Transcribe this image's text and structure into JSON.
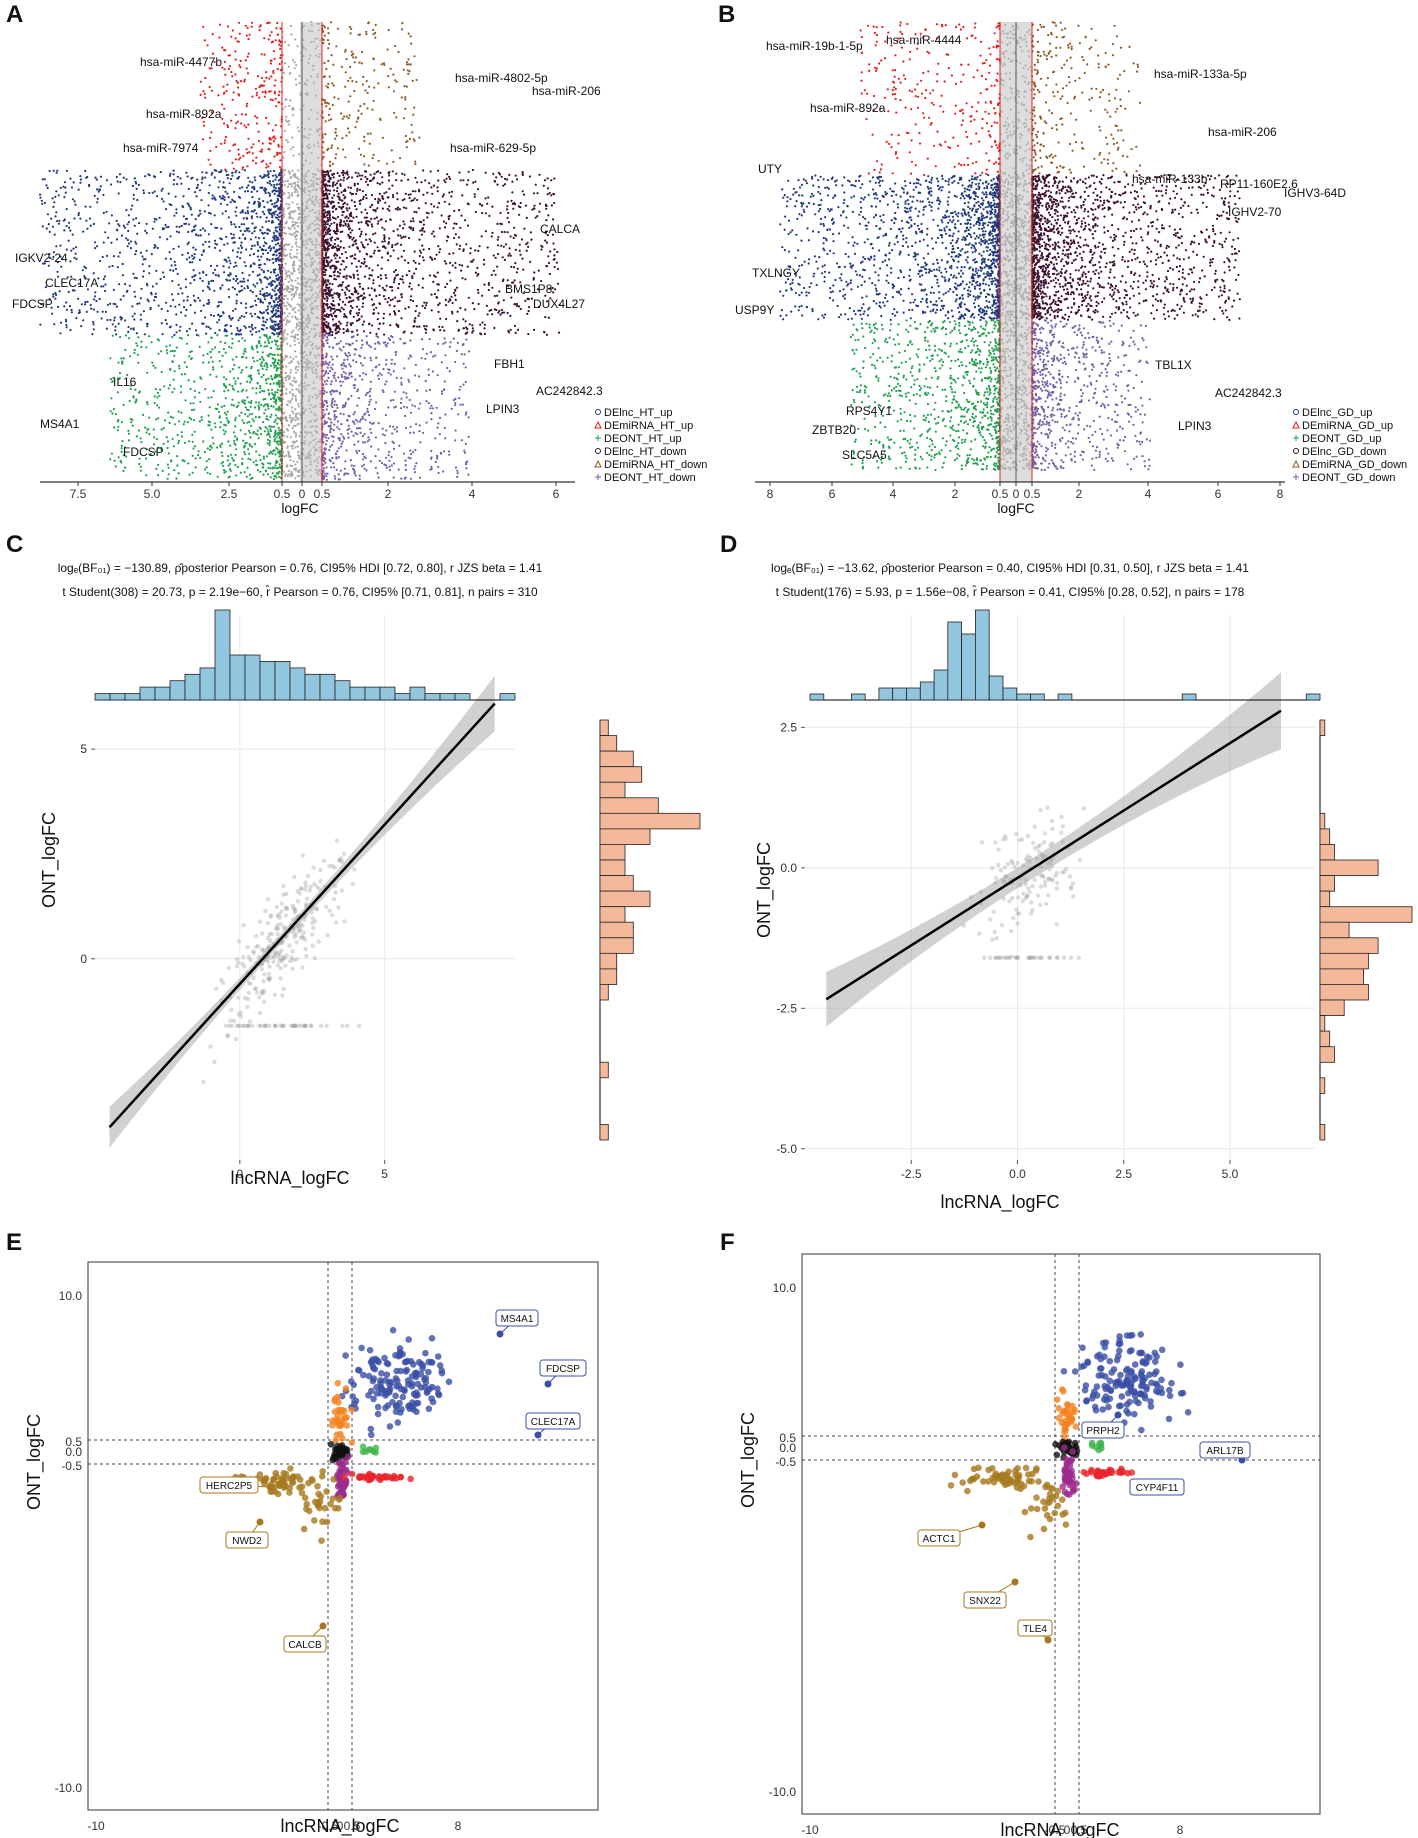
{
  "figure": {
    "panels": [
      "A",
      "B",
      "C",
      "D",
      "E",
      "F"
    ]
  },
  "colors": {
    "lnc_up": "#1f3a7a",
    "lnc_down": "#3b1030",
    "mirna_up": "#8b5a20",
    "mirna_down": "#e02020",
    "ont_up": "#7060a8",
    "ont_down": "#20a050",
    "gray": "#a8a8a8",
    "hist_top": "#92c5de",
    "hist_right": "#f4b89a",
    "blue_pt": "#3a4fa5",
    "orange_pt": "#f58220",
    "red_pt": "#e8242a",
    "green_pt": "#3cb44b",
    "purple_pt": "#9b2a8f",
    "tan_pt": "#a6791e",
    "black_pt": "#111111"
  },
  "chart_data": [
    {
      "panel": "A",
      "type": "scatter",
      "title": "",
      "xlabel": "logFC",
      "x_ticks": [
        "7.5",
        "5.0",
        "2.5",
        "0.5",
        "0",
        "0.5",
        "2",
        "4",
        "6"
      ],
      "legend": [
        "DElnc_HT_up",
        "DEmiRNA_HT_up",
        "DEONT_HT_up",
        "DElnc_HT_down",
        "DEmiRNA_HT_down",
        "DEONT_HT_down"
      ],
      "labels": [
        "hsa-miR-4477b",
        "hsa-miR-892a",
        "hsa-miR-7974",
        "hsa-miR-4802-5p",
        "hsa-miR-206",
        "hsa-miR-629-5p",
        "IGKV2-24",
        "CLEC17A",
        "FDCSP",
        "CALCA",
        "BMS1P8",
        "DUX4L27",
        "IL16",
        "MS4A1",
        "FDCSP",
        "FBH1",
        "AC242842.3",
        "LPIN3"
      ]
    },
    {
      "panel": "B",
      "type": "scatter",
      "title": "",
      "xlabel": "logFC",
      "x_ticks": [
        "8",
        "6",
        "4",
        "2",
        "0.5",
        "0",
        "0.5",
        "2",
        "4",
        "6",
        "8"
      ],
      "legend": [
        "DElnc_GD_up",
        "DEmiRNA_GD_up",
        "DEONT_GD_up",
        "DElnc_GD_down",
        "DEmiRNA_GD_down",
        "DEONT_GD_down"
      ],
      "labels": [
        "hsa-miR-19b-1-5p",
        "hsa-miR-4444",
        "hsa-miR-892a",
        "hsa-miR-133a-5p",
        "hsa-miR-206",
        "hsa-miR-133b",
        "UTY",
        "RP11-160E2.6",
        "IGHV3-64D",
        "IGHV2-70",
        "TXLNGY",
        "USP9Y",
        "TBL1X",
        "AC242842.3",
        "RPS4Y1",
        "LPIN3",
        "ZBTB20",
        "SLC5A5"
      ]
    },
    {
      "panel": "C",
      "type": "scatter",
      "xlabel": "lncRNA_logFC",
      "ylabel": "ONT_logFC",
      "stats_line1": "logₑ(BF₀₁) = −130.89, ρ̂posterior Pearson = 0.76, CI95% HDI [0.72, 0.80], r JZS beta = 1.41",
      "stats_line2": "t Student(308) = 20.73, p = 2.19e−60, r̂ Pearson = 0.76, CI95% [0.71, 0.81], n pairs = 310",
      "xlim": [
        -5,
        9.5
      ],
      "ylim": [
        -4.8,
        8.2
      ],
      "x_ticks": [
        0,
        5
      ],
      "y_ticks": [
        0,
        5
      ],
      "fit": {
        "slope": 0.76,
        "intercept": -0.6
      },
      "hist_top": [
        1,
        1,
        1,
        2,
        2,
        3,
        4,
        5,
        14,
        7,
        7,
        6,
        6,
        5,
        4,
        4,
        3,
        2,
        2,
        2,
        1,
        2,
        1,
        1,
        1,
        0,
        0,
        1
      ],
      "hist_right": [
        1,
        2,
        4,
        5,
        3,
        7,
        12,
        6,
        3,
        3,
        4,
        6,
        3,
        4,
        4,
        2,
        2,
        1,
        0,
        0,
        0,
        0,
        1,
        0,
        0,
        0,
        1
      ]
    },
    {
      "panel": "D",
      "type": "scatter",
      "xlabel": "lncRNA_logFC",
      "ylabel": "ONT_logFC",
      "stats_line1": "logₑ(BF₀₁) = −13.62, ρ̂posterior Pearson = 0.40, CI95% HDI [0.31, 0.50], r JZS beta = 1.41",
      "stats_line2": "t Student(176) = 5.93, p = 1.56e−08, r̂ Pearson = 0.41, CI95% [0.28, 0.52], n pairs = 178",
      "xlim": [
        -5,
        7
      ],
      "ylim": [
        -5.2,
        4.5
      ],
      "x_ticks": [
        -2.5,
        0.0,
        2.5,
        5.0
      ],
      "y_ticks": [
        -5.0,
        -2.5,
        0.0,
        2.5
      ],
      "fit": {
        "slope": 0.48,
        "intercept": -0.18
      },
      "hist_top": [
        1,
        0,
        0,
        1,
        0,
        2,
        2,
        2,
        3,
        5,
        13,
        11,
        15,
        4,
        2,
        1,
        1,
        0,
        1,
        0,
        0,
        0,
        0,
        0,
        0,
        0,
        0,
        1,
        0,
        0,
        0,
        0,
        0,
        0,
        0,
        0,
        1
      ],
      "hist_right": [
        1,
        0,
        0,
        0,
        0,
        0,
        1,
        2,
        3,
        12,
        3,
        2,
        19,
        6,
        12,
        10,
        9,
        10,
        5,
        1,
        2,
        3,
        0,
        1,
        0,
        0,
        1
      ]
    },
    {
      "panel": "E",
      "type": "scatter",
      "xlabel": "lncRNA_logFC",
      "ylabel": "ONT_logFC",
      "x_ticks": [
        "-10",
        "-0.5",
        "0",
        "0.5",
        "8"
      ],
      "y_ticks": [
        "10.0",
        "0.5",
        "0.0",
        "-0.5",
        "-10.0"
      ],
      "labels_blue": [
        "MS4A1",
        "FDCSP",
        "CLEC17A"
      ],
      "labels_tan": [
        "HERC2P5",
        "NWD2",
        "CALCB"
      ]
    },
    {
      "panel": "F",
      "type": "scatter",
      "xlabel": "lncRNA_logFC",
      "ylabel": "ONT_logFC",
      "x_ticks": [
        "-10",
        "-0.5",
        "0",
        "0.5",
        "8"
      ],
      "y_ticks": [
        "10.0",
        "0.5",
        "0.0",
        "-0.5",
        "-10.0"
      ],
      "labels_blue": [
        "PRPH2",
        "ARL17B",
        "CYP4F11"
      ],
      "labels_tan": [
        "ACTC1",
        "SNX22",
        "TLE4"
      ]
    }
  ]
}
